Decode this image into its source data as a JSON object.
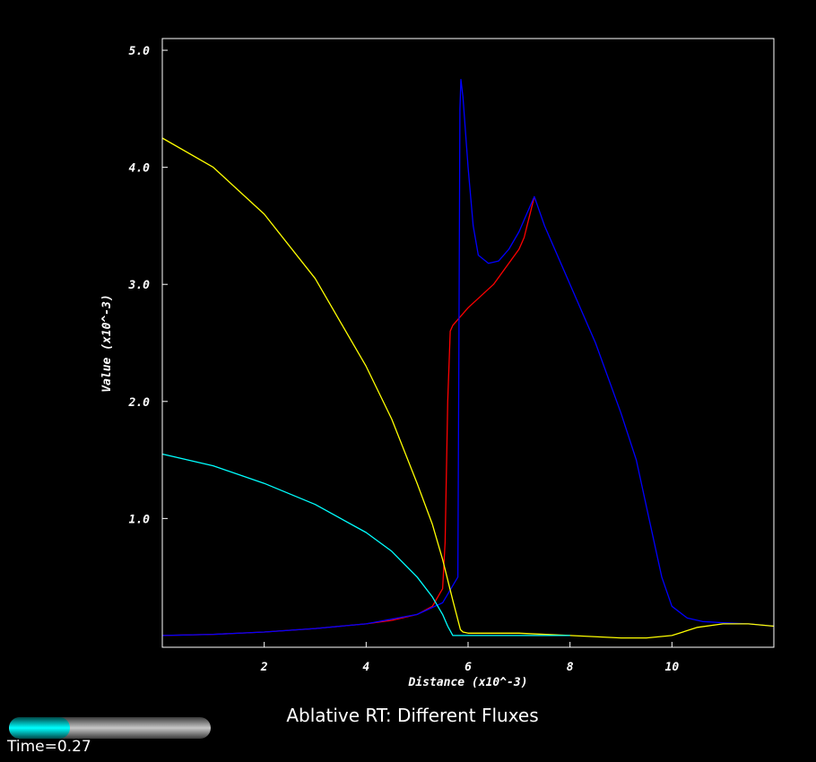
{
  "title": "Ablative RT: Different Fluxes",
  "time_label": "Time=0.27",
  "time_progress": 0.3,
  "colors": {
    "background": "#000000",
    "axes": "#ffffff",
    "slider_fill": "#00ffff",
    "slider_track": "#c8c8c8"
  },
  "chart_data": {
    "type": "line",
    "title": "Ablative RT: Different Fluxes",
    "xlabel": "Distance (x10^-3)",
    "ylabel": "Value (x10^-3)",
    "xlim": [
      0,
      12
    ],
    "ylim": [
      -0.1,
      5.1
    ],
    "x_ticks": [
      2,
      4,
      6,
      8,
      10
    ],
    "x_tick_labels": [
      "2",
      "4",
      "6",
      "8",
      "10"
    ],
    "y_ticks": [
      1,
      2,
      3,
      4,
      5
    ],
    "y_tick_labels": [
      "1.0",
      "2.0",
      "3.0",
      "4.0",
      "5.0"
    ],
    "grid": false,
    "series": [
      {
        "color": "#ff0000",
        "x": [
          0,
          1,
          2,
          3,
          4,
          4.5,
          5,
          5.3,
          5.5,
          5.55,
          5.6,
          5.65,
          5.7,
          6,
          6.5,
          7,
          7.1,
          7.3
        ],
        "y": [
          0.0,
          0.01,
          0.03,
          0.06,
          0.1,
          0.13,
          0.18,
          0.25,
          0.4,
          0.8,
          2.0,
          2.6,
          2.65,
          2.8,
          3.0,
          3.3,
          3.4,
          3.75
        ]
      },
      {
        "color": "#0000ff",
        "x": [
          0,
          1,
          2,
          3,
          4,
          5,
          5.5,
          5.8,
          5.82,
          5.84,
          5.86,
          5.9,
          6.0,
          6.1,
          6.2,
          6.4,
          6.6,
          6.8,
          7.0,
          7.2,
          7.3,
          7.5,
          8,
          8.5,
          9,
          9.3,
          9.6,
          9.8,
          10,
          10.3,
          10.6,
          11,
          11.5,
          12
        ],
        "y": [
          0.0,
          0.01,
          0.03,
          0.06,
          0.1,
          0.18,
          0.28,
          0.5,
          2.5,
          4.5,
          4.75,
          4.6,
          4.0,
          3.5,
          3.25,
          3.18,
          3.2,
          3.3,
          3.45,
          3.65,
          3.75,
          3.5,
          3.0,
          2.5,
          1.9,
          1.5,
          0.9,
          0.5,
          0.25,
          0.15,
          0.12,
          0.11,
          0.1,
          0.08
        ]
      },
      {
        "color": "#ffff00",
        "x": [
          0,
          1,
          2,
          3,
          4,
          4.5,
          5,
          5.3,
          5.5,
          5.7,
          5.85,
          5.9,
          6,
          7,
          8,
          9,
          9.5,
          10,
          10.5,
          11,
          11.5,
          12
        ],
        "y": [
          4.25,
          4.0,
          3.6,
          3.05,
          2.3,
          1.85,
          1.3,
          0.95,
          0.65,
          0.3,
          0.05,
          0.03,
          0.02,
          0.02,
          0.0,
          -0.02,
          -0.02,
          0.0,
          0.07,
          0.1,
          0.1,
          0.08
        ]
      },
      {
        "color": "#00ffff",
        "x": [
          0,
          1,
          2,
          3,
          4,
          4.5,
          5,
          5.3,
          5.5,
          5.6,
          5.7,
          6,
          7,
          8
        ],
        "y": [
          1.55,
          1.45,
          1.3,
          1.12,
          0.88,
          0.72,
          0.5,
          0.33,
          0.18,
          0.08,
          0.0,
          0.0,
          0.0,
          0.0
        ]
      }
    ]
  }
}
